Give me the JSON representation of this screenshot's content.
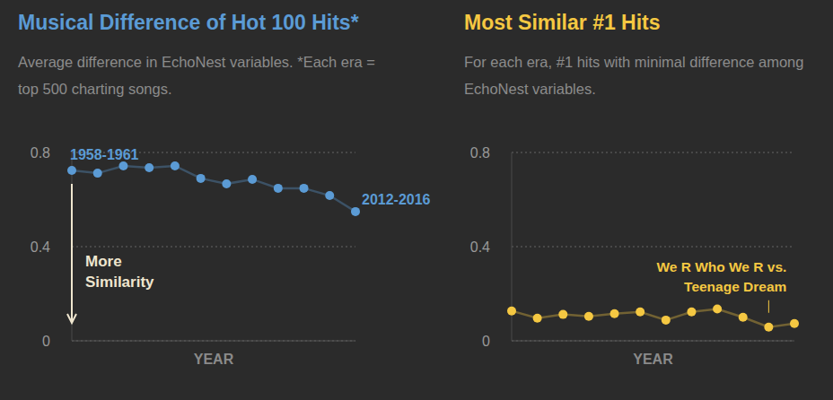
{
  "chart_data": [
    {
      "type": "line",
      "title": "Musical Difference of Hot 100 Hits*",
      "subtitle": "Average difference in EchoNest variables. *Each era = top 500 charting songs.",
      "x_label": "YEAR",
      "categories": [
        "1958-1961",
        null,
        null,
        null,
        null,
        null,
        null,
        null,
        null,
        null,
        null,
        "2012-2016"
      ],
      "values": [
        0.724,
        0.712,
        0.743,
        0.735,
        0.743,
        0.69,
        0.667,
        0.686,
        0.648,
        0.648,
        0.617,
        0.549
      ],
      "color": "#5b9bd5",
      "ylim": [
        0,
        0.8
      ],
      "yticks": [
        0,
        0.4,
        0.8
      ],
      "grid": true,
      "tick_labels": "y",
      "marker": "circle",
      "annotations": [
        {
          "text": "More Similarity"
        }
      ]
    },
    {
      "type": "line",
      "title": "Most Similar #1 Hits",
      "subtitle": "For each era, #1 hits with minimal difference among EchoNest variables.",
      "x_label": "YEAR",
      "categories": [
        null,
        null,
        null,
        null,
        null,
        null,
        null,
        null,
        null,
        null,
        null,
        null
      ],
      "values": [
        0.127,
        0.096,
        0.112,
        0.104,
        0.115,
        0.123,
        0.088,
        0.123,
        0.135,
        0.1,
        0.058,
        0.073
      ],
      "color": "#f5c842",
      "ylim": [
        0,
        0.8
      ],
      "yticks": [
        0,
        0.4,
        0.8
      ],
      "grid": true,
      "tick_labels": "y",
      "marker": "circle",
      "annotations": [
        {
          "text": "We R Who We R vs. Teenage Dream",
          "at": 10
        }
      ]
    }
  ]
}
